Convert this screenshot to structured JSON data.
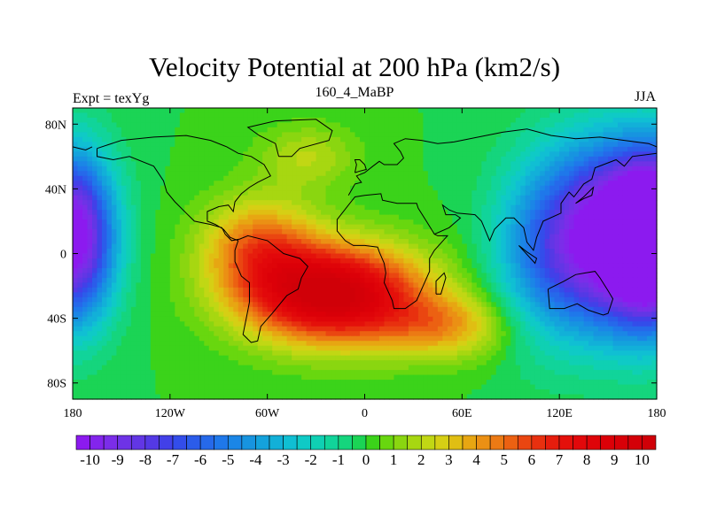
{
  "chart_data": {
    "type": "heatmap",
    "title": "Velocity Potential at 200 hPa (km2/s)",
    "subtitle_left": "Expt = texYg",
    "subtitle_center": "160_4_MaBP",
    "subtitle_right": "JJA",
    "x_range": [
      -180,
      180
    ],
    "y_range": [
      -90,
      90
    ],
    "x_tick_values": [
      -180,
      -120,
      -60,
      0,
      60,
      120,
      180
    ],
    "x_tick_labels": [
      "180",
      "120W",
      "60W",
      "0",
      "60E",
      "120E",
      "180"
    ],
    "y_tick_values": [
      80,
      40,
      0,
      -40,
      -80
    ],
    "y_tick_labels": [
      "80N",
      "40N",
      "0",
      "40S",
      "80S"
    ],
    "colorbar": {
      "min": -10.5,
      "max": 10.5,
      "step": 0.5,
      "label_values": [
        -10,
        -9,
        -8,
        -7,
        -6,
        -5,
        -4,
        -3,
        -2,
        -1,
        0,
        1,
        2,
        3,
        4,
        5,
        6,
        7,
        8,
        9,
        10
      ],
      "colors": [
        "#8c1aef",
        "#8325ec",
        "#7b2de9",
        "#6e33e6",
        "#6236e5",
        "#5439e5",
        "#4240e8",
        "#334dea",
        "#2b5cea",
        "#2669ea",
        "#1f78ea",
        "#1b86e6",
        "#1794e0",
        "#14a2dc",
        "#12b0d8",
        "#10bfd3",
        "#0fcac6",
        "#0fd0b3",
        "#11d49a",
        "#15d57d",
        "#1bd455",
        "#3bd31a",
        "#68d70f",
        "#8ad610",
        "#a7d711",
        "#c1d714",
        "#d6cf14",
        "#e0be13",
        "#e7a612",
        "#eb9014",
        "#ec7a14",
        "#ec6112",
        "#ea4611",
        "#e8300f",
        "#e61d0d",
        "#e4100b",
        "#e2080b",
        "#df0409",
        "#dc0008",
        "#d80008",
        "#d40008",
        "#d00008"
      ]
    },
    "centers": [
      {
        "lon": -20,
        "lat": -25,
        "value": 10.5,
        "sx": 55,
        "sy": 30
      },
      {
        "lon": -65,
        "lat": 5,
        "value": 4.5,
        "sx": 35,
        "sy": 30
      },
      {
        "lon": 50,
        "lat": -45,
        "value": 3.5,
        "sx": 40,
        "sy": 20
      },
      {
        "lon": -35,
        "lat": 60,
        "value": 2.0,
        "sx": 30,
        "sy": 20
      },
      {
        "lon": 150,
        "lat": 10,
        "value": -11.5,
        "sx": 40,
        "sy": 55
      },
      {
        "lon": -180,
        "lat": 10,
        "value": -11.5,
        "sx": 25,
        "sy": 50
      },
      {
        "lon": 180,
        "lat": 10,
        "value": -11.5,
        "sx": 25,
        "sy": 50
      },
      {
        "lon": 105,
        "lat": 0,
        "value": -3.0,
        "sx": 30,
        "sy": 55
      }
    ],
    "coast_color": "#000000"
  }
}
